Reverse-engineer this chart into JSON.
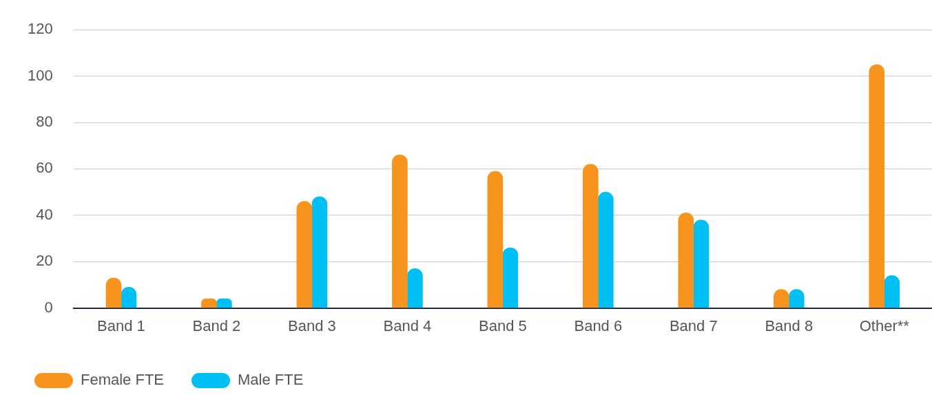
{
  "chart_data": {
    "type": "bar",
    "categories": [
      "Band 1",
      "Band 2",
      "Band 3",
      "Band 4",
      "Band 5",
      "Band 6",
      "Band 7",
      "Band 8",
      "Other**"
    ],
    "series": [
      {
        "name": "Female FTE",
        "color": "#f7941d",
        "values": [
          13,
          4,
          46,
          66,
          59,
          62,
          41,
          8,
          105
        ]
      },
      {
        "name": "Male FTE",
        "color": "#00bff3",
        "values": [
          9,
          4,
          48,
          17,
          26,
          50,
          38,
          8,
          14
        ]
      }
    ],
    "ylim": [
      0,
      120
    ],
    "yticks": [
      0,
      20,
      40,
      60,
      80,
      100,
      120
    ],
    "grid": "y",
    "legend": "bottom left"
  }
}
